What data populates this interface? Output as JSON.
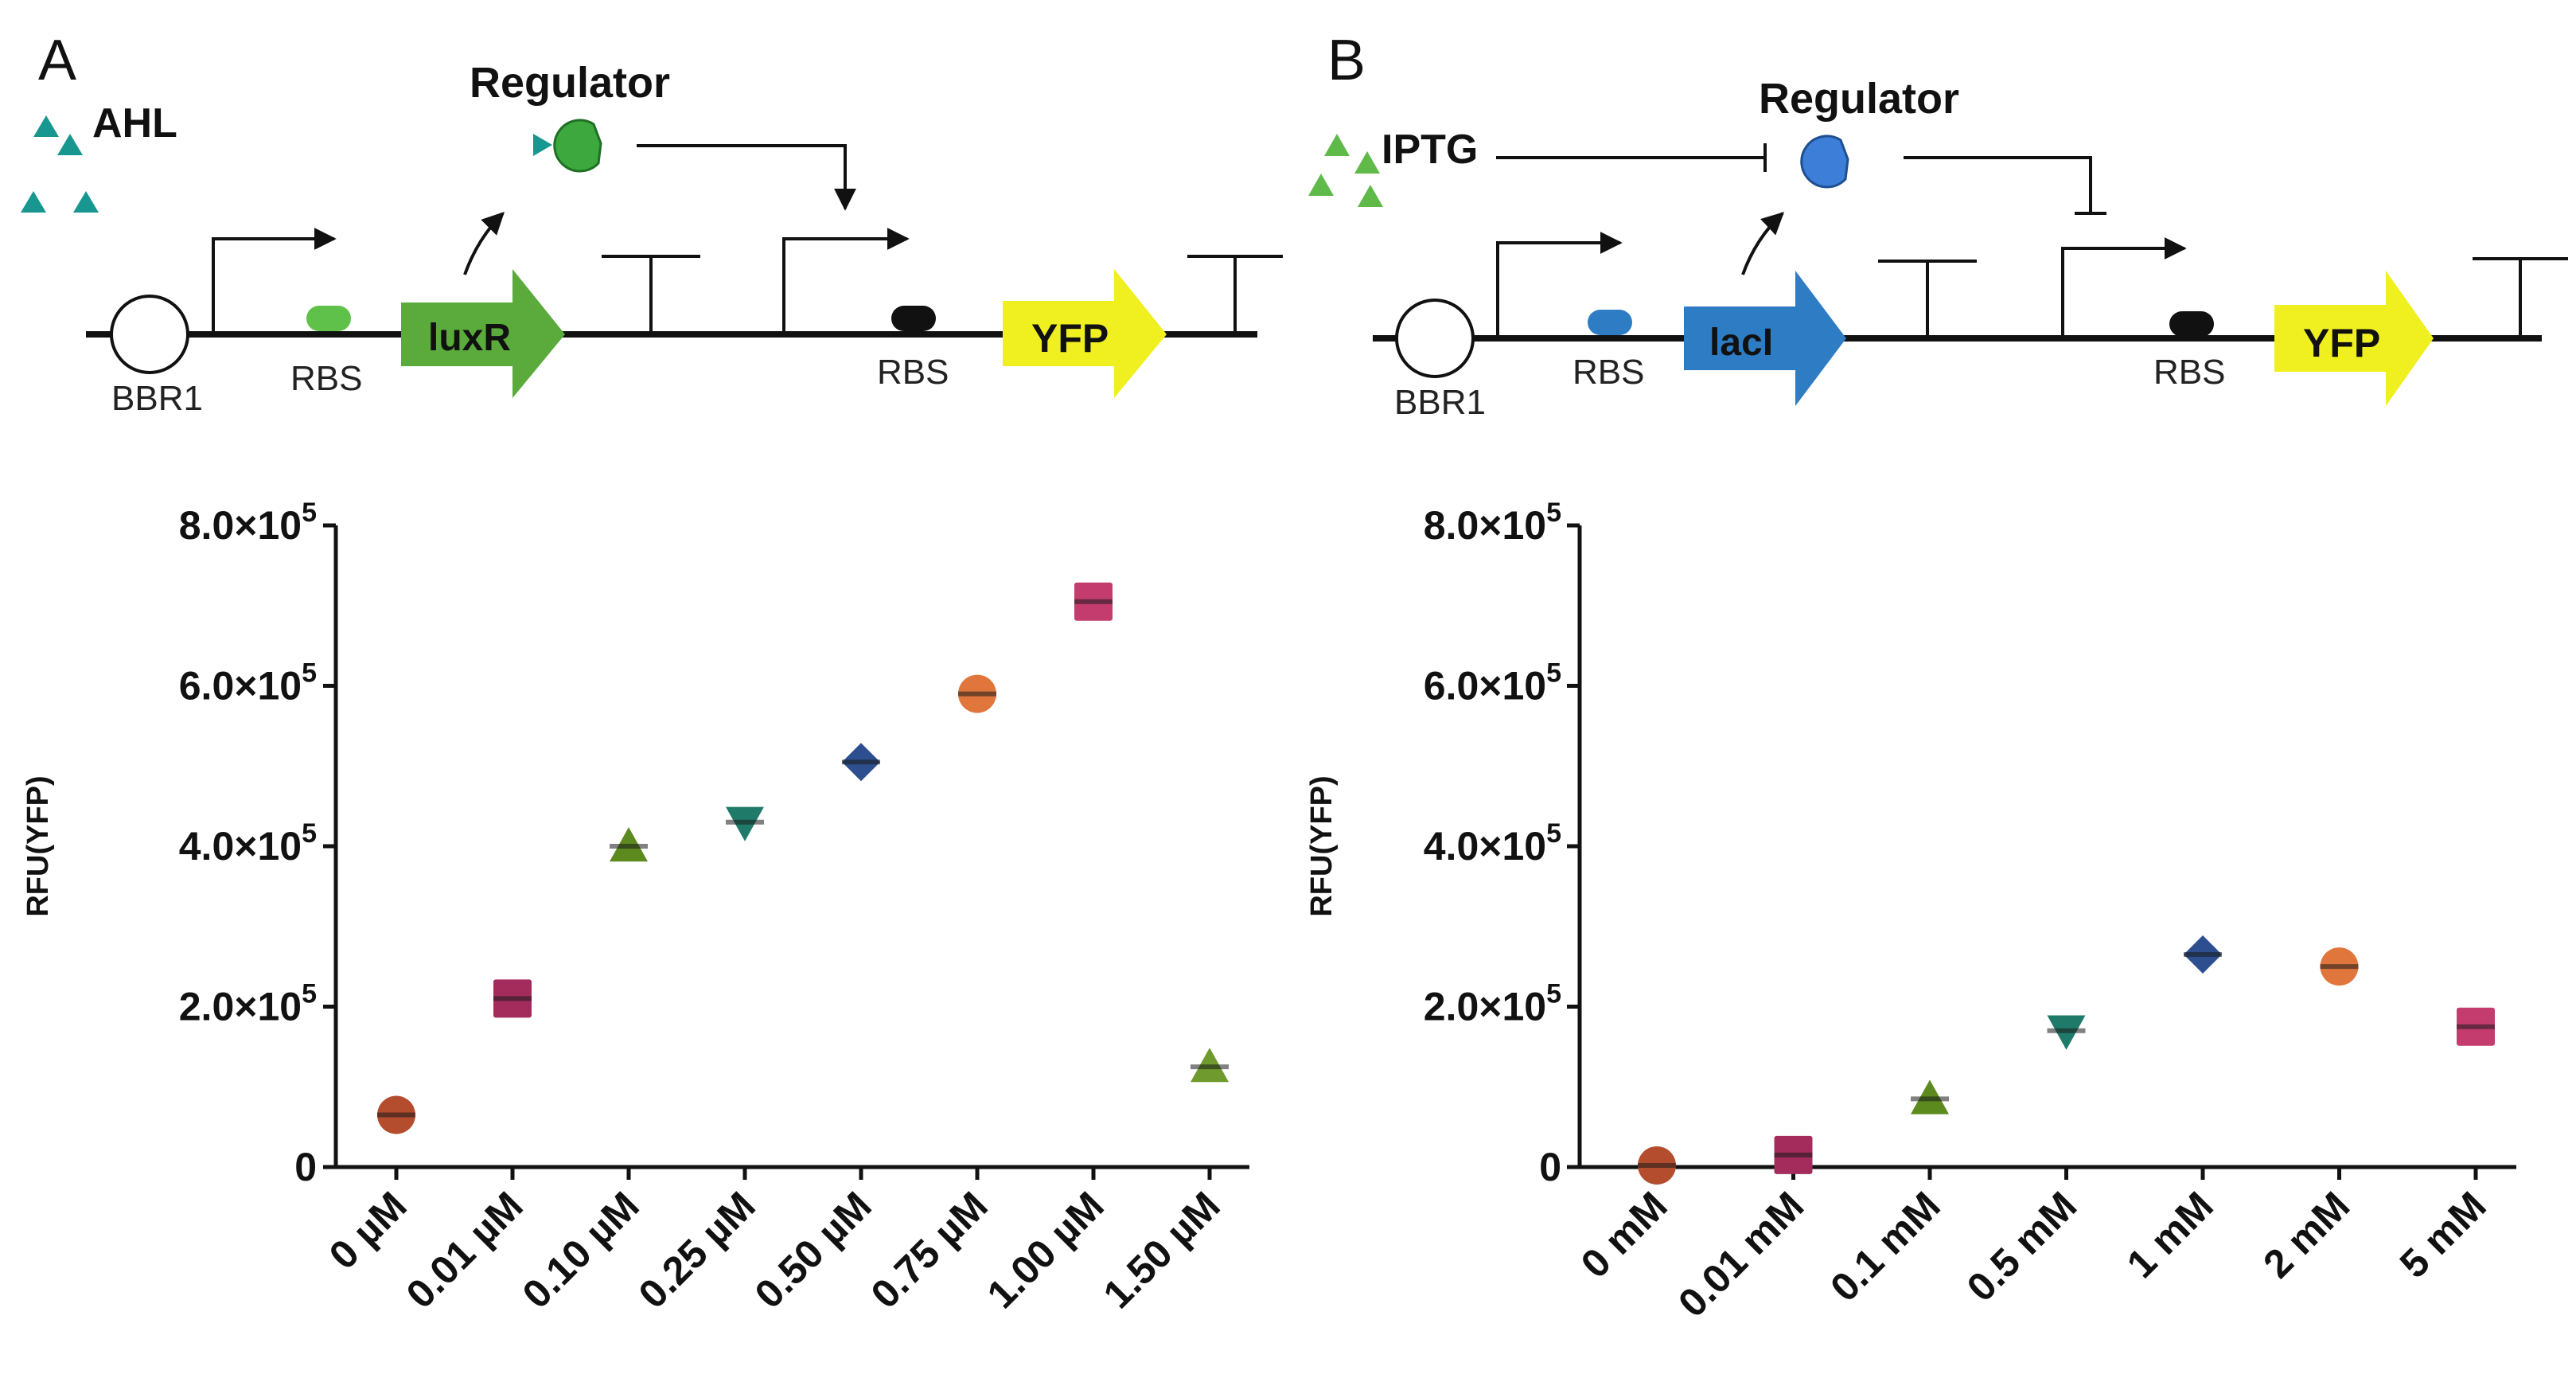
{
  "panels": {
    "a": {
      "letter": "A",
      "inducer": "AHL",
      "regulator": "Regulator",
      "origin": "BBR1",
      "rbs1": "RBS",
      "rbs2": "RBS",
      "gene": "luxR",
      "reporter": "YFP"
    },
    "b": {
      "letter": "B",
      "inducer": "IPTG",
      "regulator": "Regulator",
      "origin": "BBR1",
      "rbs1": "RBS",
      "rbs2": "RBS",
      "gene": "lacI",
      "reporter": "YFP"
    }
  },
  "colors": {
    "black": "#111111",
    "green_part": "#5aab3c",
    "blue_part": "#2e7cc4",
    "yellow_part": "#f0f020",
    "ahl_triangle": "#17978f",
    "iptg_triangle": "#5fba4a",
    "regulator_a": "#3ca83e",
    "regulator_b": "#3d7ed8"
  },
  "chart_data": [
    {
      "type": "scatter",
      "panel": "A",
      "title": "",
      "xlabel": "",
      "ylabel": "RFU(YFP)",
      "ylim": [
        0,
        800000
      ],
      "yticks": [
        {
          "value": 0,
          "m": "0",
          "e": ""
        },
        {
          "value": 200000,
          "m": "2.0",
          "e": "5"
        },
        {
          "value": 400000,
          "m": "4.0",
          "e": "5"
        },
        {
          "value": 600000,
          "m": "6.0",
          "e": "5"
        },
        {
          "value": 800000,
          "m": "8.0",
          "e": "5"
        }
      ],
      "categories": [
        "0 µM",
        "0.01 µM",
        "0.10 µM",
        "0.25 µM",
        "0.50 µM",
        "0.75 µM",
        "1.00 µM",
        "1.50 µM"
      ],
      "values": [
        65000,
        210000,
        400000,
        430000,
        505000,
        590000,
        705000,
        125000
      ],
      "markers": [
        "circle",
        "square",
        "triangle-up",
        "triangle-down",
        "diamond",
        "circle",
        "square",
        "triangle-up"
      ],
      "colors": [
        "#b34d2e",
        "#a32c5c",
        "#5c8a1f",
        "#1f7a6a",
        "#2e4f8f",
        "#e0763c",
        "#c43c6e",
        "#6e9a2e"
      ]
    },
    {
      "type": "scatter",
      "panel": "B",
      "title": "",
      "xlabel": "",
      "ylabel": "RFU(YFP)",
      "ylim": [
        0,
        800000
      ],
      "yticks": [
        {
          "value": 0,
          "m": "0",
          "e": ""
        },
        {
          "value": 200000,
          "m": "2.0",
          "e": "5"
        },
        {
          "value": 400000,
          "m": "4.0",
          "e": "5"
        },
        {
          "value": 600000,
          "m": "6.0",
          "e": "5"
        },
        {
          "value": 800000,
          "m": "8.0",
          "e": "5"
        }
      ],
      "categories": [
        "0 mM",
        "0.01 mM",
        "0.1 mM",
        "0.5 mM",
        "1 mM",
        "2 mM",
        "5 mM"
      ],
      "values": [
        2000,
        15000,
        85000,
        170000,
        265000,
        250000,
        175000
      ],
      "markers": [
        "circle",
        "square",
        "triangle-up",
        "triangle-down",
        "diamond",
        "circle",
        "square"
      ],
      "colors": [
        "#b34d2e",
        "#a32c5c",
        "#5c8a1f",
        "#1f7a6a",
        "#2e4f8f",
        "#e0763c",
        "#c43c6e"
      ]
    }
  ]
}
